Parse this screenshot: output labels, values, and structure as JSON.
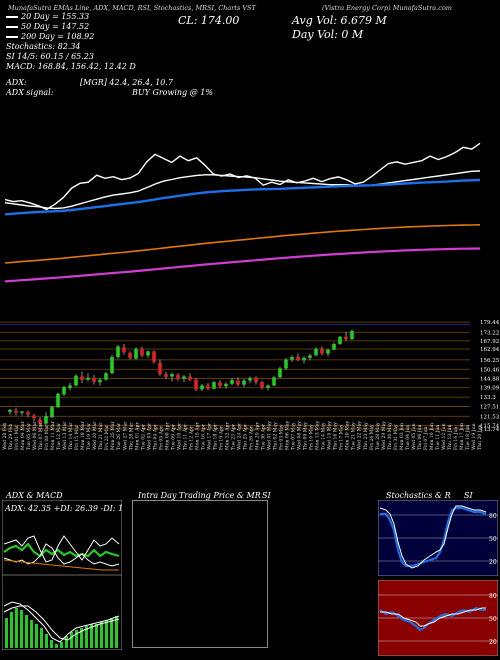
{
  "header": {
    "left_strip": "MunafaSutra EMAs Line, ADX, MACD, RSI, Stochastics, MRSI, Charts VST",
    "company": "(Vistra Energy Corp) MunafaSutra.com"
  },
  "info": {
    "ema20": "20 Day = 155.33",
    "ema50": "50 Day = 147.52",
    "ema200": "200 Day = 108.92",
    "stochastics": "Stochastics: 82.34",
    "si": "SI 14/5: 60.15 / 65.23",
    "macd": "MACD: 168.84, 156.42, 12.42 D",
    "adx": "ADX:",
    "adx_vals": "[MGR] 42.4, 26.4, 10.7",
    "adx_signal": "ADX signal:",
    "buy": "BUY Growing @ 1%",
    "cl": "CL: 174.00",
    "avg_vol": "Avg Vol: 6.679 M",
    "day_vol": "Day Vol: 0   M"
  },
  "colors": {
    "background": "#000000",
    "up": "#22cc22",
    "down": "#dd2222",
    "ema_white": "#ffffff",
    "ema_blue": "#1d6fe8",
    "ema_orange": "#e0780a",
    "ema_magenta": "#d23cd2",
    "stoch_bg": "#00003a",
    "si_bg": "#8a0000"
  },
  "price_levels": [
    "179.44",
    "173.22",
    "167.92",
    "162.94",
    "156.25",
    "150.46",
    "144.88",
    "139.09",
    "133.3",
    "127.51",
    "121.53",
    "115.74",
    "113.74"
  ],
  "dates": [
    "Wed 28 Feb",
    "Thu 29 Feb",
    "Fri 01 Mar",
    "Mon 04 Mar",
    "Tue 05 Mar",
    "Wed 06 Mar",
    "Thu 07 Mar",
    "Fri 08 Mar",
    "Mon 11 Mar",
    "Tue 12 Mar",
    "Wed 13 Mar",
    "Thu 14 Mar",
    "Fri 15 Mar",
    "Mon 18 Mar",
    "Tue 19 Mar",
    "Wed 20 Mar",
    "Thu 21 Mar",
    "Fri 22 Mar",
    "Mon 25 Mar",
    "Tue 26 Mar",
    "Wed 27 Mar",
    "Thu 28 Mar",
    "Mon 01 Apr",
    "Tue 02 Apr",
    "Wed 03 Apr",
    "Thu 04 Apr",
    "Fri 05 Apr",
    "Mon 08 Apr",
    "Tue 09 Apr",
    "Wed 10 Apr",
    "Thu 11 Apr",
    "Fri 12 Apr",
    "Mon 15 Apr",
    "Tue 16 Apr",
    "Wed 17 Apr",
    "Thu 18 Apr",
    "Fri 19 Apr",
    "Mon 22 Apr",
    "Tue 23 Apr",
    "Wed 24 Apr",
    "Thu 25 Apr",
    "Fri 26 Apr",
    "Mon 29 Apr",
    "Tue 30 Apr",
    "Wed 01 May",
    "Thu 02 May",
    "Fri 03 May",
    "Mon 06 May",
    "Tue 07 May",
    "Wed 08 May",
    "Thu 09 May",
    "Fri 10 May",
    "Mon 13 May",
    "Tue 14 May",
    "Wed 15 May",
    "Thu 16 May",
    "Fri 17 May",
    "Mon 20 May",
    "Tue 21 May",
    "Wed 22 May",
    "Thu 23 May",
    "Fri 24 May",
    "Tue 28 May",
    "Wed 29 May",
    "Thu 30 May",
    "Fri 31 May",
    "Mon 03 Jun",
    "Tue 04 Jun",
    "Wed 05 Jun",
    "Thu 06 Jun",
    "Fri 07 Jun",
    "Mon 10 Jun",
    "Tue 11 Jun",
    "Wed 12 Jun",
    "Thu 13 Jun",
    "Fri 14 Jun",
    "Mon 17 Jun",
    "Tue 18 Jun",
    "Wed 19 Jun",
    "Thu 20 Jun"
  ],
  "panels": {
    "adx_title": "ADX & MACD",
    "adx_values": "ADX: 42.35  +DI: 26.39  -DI: 10.69",
    "intraday_title": "Intra Day Trading Price & MR",
    "intraday_si": "SI",
    "stoch_title": "Stochastics & R",
    "stoch_si": "SI",
    "stoch_top_labels": [
      "80",
      "50",
      "20"
    ],
    "stoch_bottom_labels": [
      "80",
      "50",
      "20"
    ]
  },
  "chart_data": {
    "type": "candlestick",
    "title": "VST (Vistra Energy Corp)",
    "ylabel": "",
    "ylim": [
      110,
      182
    ],
    "candles": [
      {
        "o": 124.2,
        "h": 126.0,
        "l": 122.5,
        "c": 125.5
      },
      {
        "o": 125.0,
        "h": 126.8,
        "l": 122.0,
        "c": 123.8
      },
      {
        "o": 123.6,
        "h": 124.8,
        "l": 122.0,
        "c": 124.5
      },
      {
        "o": 124.0,
        "h": 125.0,
        "l": 121.0,
        "c": 122.6
      },
      {
        "o": 122.0,
        "h": 123.0,
        "l": 118.5,
        "c": 120.2
      },
      {
        "o": 119.5,
        "h": 121.0,
        "l": 115.5,
        "c": 117.0
      },
      {
        "o": 117.0,
        "h": 124.0,
        "l": 116.0,
        "c": 121.5
      },
      {
        "o": 121.0,
        "h": 128.0,
        "l": 120.5,
        "c": 127.2
      },
      {
        "o": 127.0,
        "h": 136.0,
        "l": 126.8,
        "c": 135.4
      },
      {
        "o": 135.0,
        "h": 140.5,
        "l": 134.0,
        "c": 139.5
      },
      {
        "o": 139.0,
        "h": 142.0,
        "l": 137.5,
        "c": 140.5
      },
      {
        "o": 140.5,
        "h": 147.5,
        "l": 140.0,
        "c": 146.5
      },
      {
        "o": 146.0,
        "h": 149.0,
        "l": 142.0,
        "c": 143.8
      },
      {
        "o": 144.0,
        "h": 148.0,
        "l": 143.0,
        "c": 145.2
      },
      {
        "o": 145.0,
        "h": 147.0,
        "l": 141.0,
        "c": 142.7
      },
      {
        "o": 142.5,
        "h": 145.0,
        "l": 140.5,
        "c": 144.0
      },
      {
        "o": 144.0,
        "h": 149.0,
        "l": 143.5,
        "c": 148.0
      },
      {
        "o": 148.0,
        "h": 159.5,
        "l": 147.5,
        "c": 158.0
      },
      {
        "o": 158.0,
        "h": 165.5,
        "l": 157.0,
        "c": 164.5
      },
      {
        "o": 164.0,
        "h": 166.0,
        "l": 159.5,
        "c": 161.0
      },
      {
        "o": 160.5,
        "h": 161.5,
        "l": 156.5,
        "c": 157.5
      },
      {
        "o": 157.0,
        "h": 164.0,
        "l": 156.5,
        "c": 163.0
      },
      {
        "o": 163.0,
        "h": 164.5,
        "l": 158.0,
        "c": 159.0
      },
      {
        "o": 159.0,
        "h": 162.0,
        "l": 157.5,
        "c": 161.5
      },
      {
        "o": 161.5,
        "h": 162.0,
        "l": 154.0,
        "c": 155.0
      },
      {
        "o": 154.5,
        "h": 156.5,
        "l": 146.5,
        "c": 147.5
      },
      {
        "o": 147.5,
        "h": 149.0,
        "l": 144.5,
        "c": 145.8
      },
      {
        "o": 146.0,
        "h": 148.5,
        "l": 143.0,
        "c": 147.5
      },
      {
        "o": 147.0,
        "h": 148.0,
        "l": 143.5,
        "c": 144.5
      },
      {
        "o": 144.5,
        "h": 147.0,
        "l": 142.5,
        "c": 146.0
      },
      {
        "o": 146.0,
        "h": 148.0,
        "l": 143.0,
        "c": 144.0
      },
      {
        "o": 144.0,
        "h": 145.0,
        "l": 137.0,
        "c": 138.0
      },
      {
        "o": 138.0,
        "h": 141.5,
        "l": 137.0,
        "c": 140.5
      },
      {
        "o": 140.5,
        "h": 142.0,
        "l": 137.5,
        "c": 138.5
      },
      {
        "o": 138.5,
        "h": 143.5,
        "l": 138.0,
        "c": 142.5
      },
      {
        "o": 142.5,
        "h": 144.0,
        "l": 139.0,
        "c": 140.0
      },
      {
        "o": 140.0,
        "h": 142.5,
        "l": 138.5,
        "c": 141.5
      },
      {
        "o": 141.5,
        "h": 145.0,
        "l": 140.5,
        "c": 143.8
      },
      {
        "o": 143.5,
        "h": 145.5,
        "l": 140.0,
        "c": 141.0
      },
      {
        "o": 141.0,
        "h": 144.5,
        "l": 139.5,
        "c": 143.5
      },
      {
        "o": 143.5,
        "h": 146.0,
        "l": 142.0,
        "c": 145.0
      },
      {
        "o": 145.0,
        "h": 146.0,
        "l": 141.0,
        "c": 142.5
      },
      {
        "o": 142.5,
        "h": 143.5,
        "l": 138.0,
        "c": 139.0
      },
      {
        "o": 139.0,
        "h": 141.0,
        "l": 137.5,
        "c": 140.5
      },
      {
        "o": 140.5,
        "h": 146.5,
        "l": 140.0,
        "c": 145.5
      },
      {
        "o": 145.5,
        "h": 152.0,
        "l": 145.0,
        "c": 151.0
      },
      {
        "o": 151.0,
        "h": 157.5,
        "l": 150.0,
        "c": 156.5
      },
      {
        "o": 156.5,
        "h": 159.0,
        "l": 155.0,
        "c": 158.0
      },
      {
        "o": 158.0,
        "h": 160.0,
        "l": 155.5,
        "c": 156.0
      },
      {
        "o": 156.0,
        "h": 158.5,
        "l": 154.0,
        "c": 157.5
      },
      {
        "o": 157.5,
        "h": 160.0,
        "l": 156.0,
        "c": 159.0
      },
      {
        "o": 159.0,
        "h": 164.0,
        "l": 158.5,
        "c": 163.0
      },
      {
        "o": 163.0,
        "h": 164.5,
        "l": 159.0,
        "c": 160.0
      },
      {
        "o": 160.0,
        "h": 163.0,
        "l": 158.5,
        "c": 162.5
      },
      {
        "o": 162.5,
        "h": 167.0,
        "l": 162.0,
        "c": 166.0
      },
      {
        "o": 166.0,
        "h": 171.0,
        "l": 165.5,
        "c": 170.5
      },
      {
        "o": 170.5,
        "h": 173.5,
        "l": 168.0,
        "c": 169.0
      },
      {
        "o": 169.0,
        "h": 175.0,
        "l": 168.5,
        "c": 174.0
      }
    ],
    "series": [
      {
        "name": "20 Day",
        "values": [
          128,
          127,
          126,
          125,
          124.5,
          123.5,
          123,
          123.5,
          125,
          127,
          129,
          131,
          133,
          134.5,
          135.5,
          136.5,
          138,
          141,
          144,
          146.5,
          148,
          149.5,
          150.5,
          151.5,
          152,
          152,
          151.5,
          151,
          150.5,
          150,
          149.5,
          148.5,
          147.5,
          146.5,
          146,
          145.5,
          145,
          144.5,
          144,
          143.5,
          143.5,
          143.5,
          143,
          142.5,
          143,
          144,
          145,
          146,
          147,
          148,
          149,
          150,
          151,
          152,
          153,
          154,
          155,
          155.3
        ]
      },
      {
        "name": "50 Day",
        "values": [
          118,
          118.5,
          119,
          119.5,
          120,
          120.3,
          120.6,
          121,
          121.7,
          122.5,
          123.3,
          124.2,
          125,
          126,
          126.8,
          127.6,
          128.5,
          129.6,
          130.8,
          132,
          133,
          134,
          135,
          136,
          136.8,
          137.4,
          137.9,
          138.3,
          138.7,
          139.1,
          139.4,
          139.6,
          139.8,
          140,
          140.3,
          140.6,
          140.9,
          141.2,
          141.5,
          141.8,
          142.1,
          142.4,
          142.6,
          142.8,
          143,
          143.3,
          143.7,
          144.1,
          144.5,
          144.9,
          145.3,
          145.6,
          145.9,
          146.2,
          146.6,
          147,
          147.3,
          147.52
        ]
      },
      {
        "name": "200 Day",
        "values": [
          76,
          76.6,
          77.2,
          77.8,
          78.4,
          79,
          79.6,
          80.2,
          80.9,
          81.6,
          82.3,
          83,
          83.7,
          84.4,
          85.1,
          85.8,
          86.5,
          87.3,
          88.1,
          88.9,
          89.7,
          90.5,
          91.3,
          92.1,
          92.9,
          93.6,
          94.3,
          95,
          95.7,
          96.4,
          97.1,
          97.8,
          98.5,
          99.2,
          99.9,
          100.5,
          101.1,
          101.7,
          102.3,
          102.9,
          103.4,
          103.9,
          104.4,
          104.9,
          105.4,
          105.8,
          106.2,
          106.6,
          107,
          107.3,
          107.6,
          107.9,
          108.1,
          108.3,
          108.5,
          108.7,
          108.8,
          108.92
        ]
      }
    ]
  }
}
